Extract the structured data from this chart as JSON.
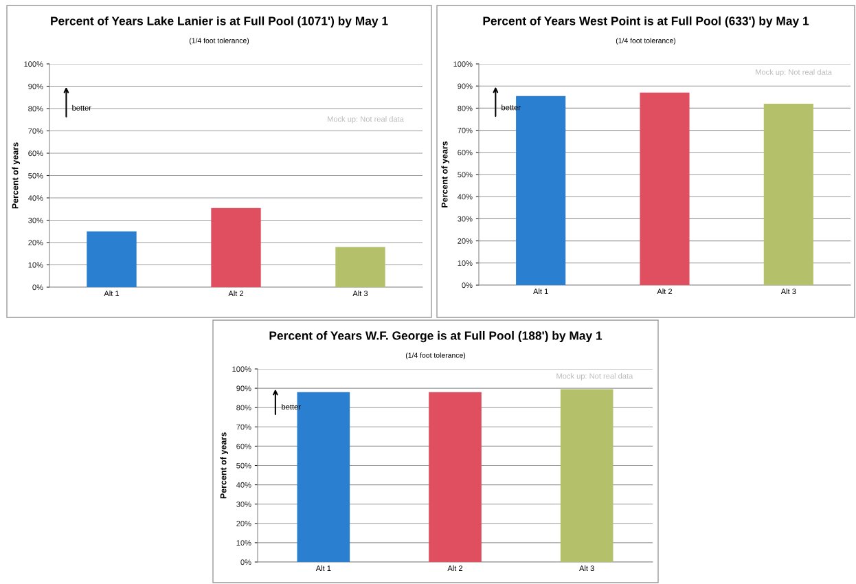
{
  "chart_data": [
    {
      "type": "bar",
      "title": "Percent of Years Lake Lanier is at Full Pool (1071') by May 1",
      "subtitle": "(1/4 foot tolerance)",
      "ylabel": "Percent of years",
      "categories": [
        "Alt 1",
        "Alt 2",
        "Alt 3"
      ],
      "values": [
        25,
        35.5,
        18
      ],
      "colors": [
        "#2a7fd0",
        "#e04f60",
        "#b5c06a"
      ],
      "ylim": [
        0,
        100
      ],
      "yticks": [
        {
          "value": 0,
          "label": "0%"
        },
        {
          "value": 10,
          "label": "10%"
        },
        {
          "value": 20,
          "label": "20%"
        },
        {
          "value": 30,
          "label": "30%"
        },
        {
          "value": 40,
          "label": "40%"
        },
        {
          "value": 50,
          "label": "50%"
        },
        {
          "value": 60,
          "label": "60%"
        },
        {
          "value": 70,
          "label": "70%"
        },
        {
          "value": 80,
          "label": "80%"
        },
        {
          "value": 90,
          "label": "90%"
        },
        {
          "value": 100,
          "label": "100%"
        }
      ],
      "grid": "y",
      "annotations": [
        "better",
        "Mock up: Not real data"
      ]
    },
    {
      "type": "bar",
      "title": "Percent of Years West Point is at Full Pool (633') by May 1",
      "subtitle": "(1/4 foot tolerance)",
      "ylabel": "Percent of years",
      "categories": [
        "Alt 1",
        "Alt 2",
        "Alt 3"
      ],
      "values": [
        85.5,
        87,
        82
      ],
      "colors": [
        "#2a7fd0",
        "#e04f60",
        "#b5c06a"
      ],
      "ylim": [
        0,
        100
      ],
      "yticks": [
        {
          "value": 0,
          "label": "0%"
        },
        {
          "value": 10,
          "label": "10%"
        },
        {
          "value": 20,
          "label": "20%"
        },
        {
          "value": 30,
          "label": "30%"
        },
        {
          "value": 40,
          "label": "40%"
        },
        {
          "value": 50,
          "label": "50%"
        },
        {
          "value": 60,
          "label": "60%"
        },
        {
          "value": 70,
          "label": "70%"
        },
        {
          "value": 80,
          "label": "80%"
        },
        {
          "value": 90,
          "label": "90%"
        },
        {
          "value": 100,
          "label": "100%"
        }
      ],
      "grid": "y",
      "annotations": [
        "better",
        "Mock up: Not real data"
      ]
    },
    {
      "type": "bar",
      "title": "Percent of Years W.F. George is at Full Pool (188') by May 1",
      "subtitle": "(1/4 foot tolerance)",
      "ylabel": "Percent of years",
      "categories": [
        "Alt 1",
        "Alt 2",
        "Alt 3"
      ],
      "values": [
        88,
        88,
        89.5
      ],
      "colors": [
        "#2a7fd0",
        "#e04f60",
        "#b5c06a"
      ],
      "ylim": [
        0,
        100
      ],
      "yticks": [
        {
          "value": 0,
          "label": "0%"
        },
        {
          "value": 10,
          "label": "10%"
        },
        {
          "value": 20,
          "label": "20%"
        },
        {
          "value": 30,
          "label": "30%"
        },
        {
          "value": 40,
          "label": "40%"
        },
        {
          "value": 50,
          "label": "50%"
        },
        {
          "value": 60,
          "label": "60%"
        },
        {
          "value": 70,
          "label": "70%"
        },
        {
          "value": 80,
          "label": "80%"
        },
        {
          "value": 90,
          "label": "90%"
        },
        {
          "value": 100,
          "label": "100%"
        }
      ],
      "grid": "y",
      "annotations": [
        "better",
        "Mock up: Not real data"
      ]
    }
  ]
}
